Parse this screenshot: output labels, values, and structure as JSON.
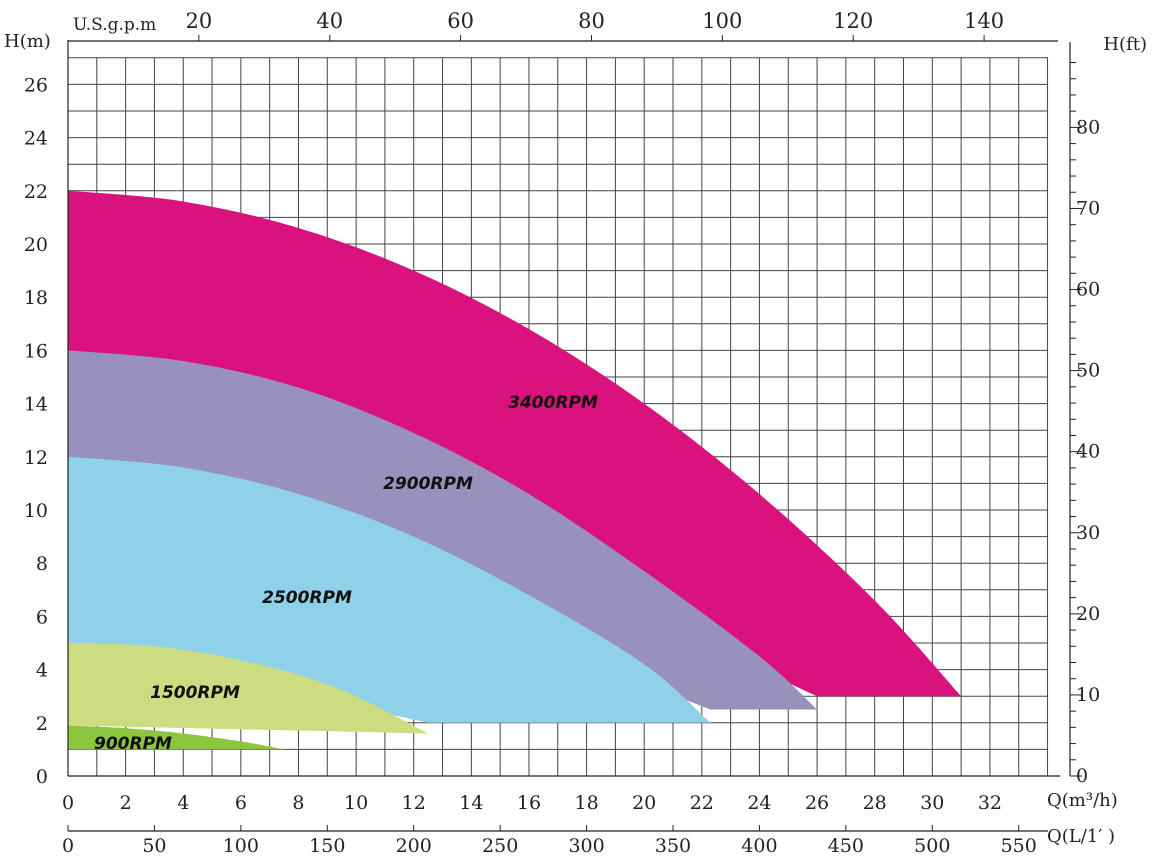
{
  "chart_data": {
    "type": "area",
    "title": "",
    "grid": true,
    "axes": {
      "bottom": {
        "label": "Q(m³/h)",
        "ticks": [
          0,
          2,
          4,
          6,
          8,
          10,
          12,
          14,
          16,
          18,
          20,
          22,
          24,
          26,
          28,
          30,
          32
        ],
        "range": [
          0,
          34
        ]
      },
      "bottom2": {
        "label": "Q(L/1′ )",
        "ticks": [
          0,
          50,
          100,
          150,
          200,
          250,
          300,
          350,
          400,
          450,
          500,
          550
        ]
      },
      "top": {
        "label": "U.S.g.p.m",
        "ticks": [
          20,
          40,
          60,
          80,
          100,
          120,
          140
        ]
      },
      "left": {
        "label": "H(m)",
        "ticks": [
          0,
          2,
          4,
          6,
          8,
          10,
          12,
          14,
          16,
          18,
          20,
          22,
          24,
          26
        ],
        "range": [
          0,
          27
        ]
      },
      "right": {
        "label": "H(ft)",
        "ticks": [
          0,
          10,
          20,
          30,
          40,
          50,
          60,
          70,
          80
        ]
      }
    },
    "series": [
      {
        "name": "3400RPM",
        "color": "#d9127e",
        "upper": [
          [
            0,
            22
          ],
          [
            4,
            21.6
          ],
          [
            8,
            20.6
          ],
          [
            12,
            19.0
          ],
          [
            16,
            16.8
          ],
          [
            20,
            14.0
          ],
          [
            24,
            10.6
          ],
          [
            28,
            6.6
          ],
          [
            31,
            3.0
          ]
        ],
        "lower": [
          [
            0,
            16
          ],
          [
            26,
            3.0
          ]
        ]
      },
      {
        "name": "2900RPM",
        "color": "#9791bb",
        "upper": [
          [
            0,
            16
          ],
          [
            4,
            15.6
          ],
          [
            8,
            14.6
          ],
          [
            12,
            12.9
          ],
          [
            16,
            10.6
          ],
          [
            20,
            7.7
          ],
          [
            24,
            4.5
          ],
          [
            26,
            2.5
          ]
        ],
        "lower": [
          [
            0,
            12
          ],
          [
            22.3,
            2.5
          ]
        ]
      },
      {
        "name": "2500RPM",
        "color": "#8ed1e8",
        "upper": [
          [
            0,
            12
          ],
          [
            4,
            11.6
          ],
          [
            8,
            10.6
          ],
          [
            12,
            9.0
          ],
          [
            16,
            6.8
          ],
          [
            20,
            4.2
          ],
          [
            22.3,
            2.0
          ]
        ],
        "lower": [
          [
            0,
            5
          ],
          [
            12.5,
            2.0
          ]
        ]
      },
      {
        "name": "1500RPM",
        "color": "#cbdd80",
        "upper": [
          [
            0,
            5
          ],
          [
            2,
            4.95
          ],
          [
            4,
            4.75
          ],
          [
            6,
            4.35
          ],
          [
            8,
            3.8
          ],
          [
            10,
            3.0
          ],
          [
            12.5,
            1.6
          ]
        ],
        "lower": [
          [
            0,
            1.9
          ],
          [
            12.5,
            1.6
          ]
        ]
      },
      {
        "name": "900RPM",
        "color": "#8cc63e",
        "upper": [
          [
            0,
            1.9
          ],
          [
            2,
            1.8
          ],
          [
            4,
            1.6
          ],
          [
            6,
            1.3
          ],
          [
            7.5,
            1.0
          ]
        ],
        "lower": [
          [
            0,
            1.0
          ],
          [
            7.5,
            1.0
          ]
        ]
      }
    ]
  }
}
